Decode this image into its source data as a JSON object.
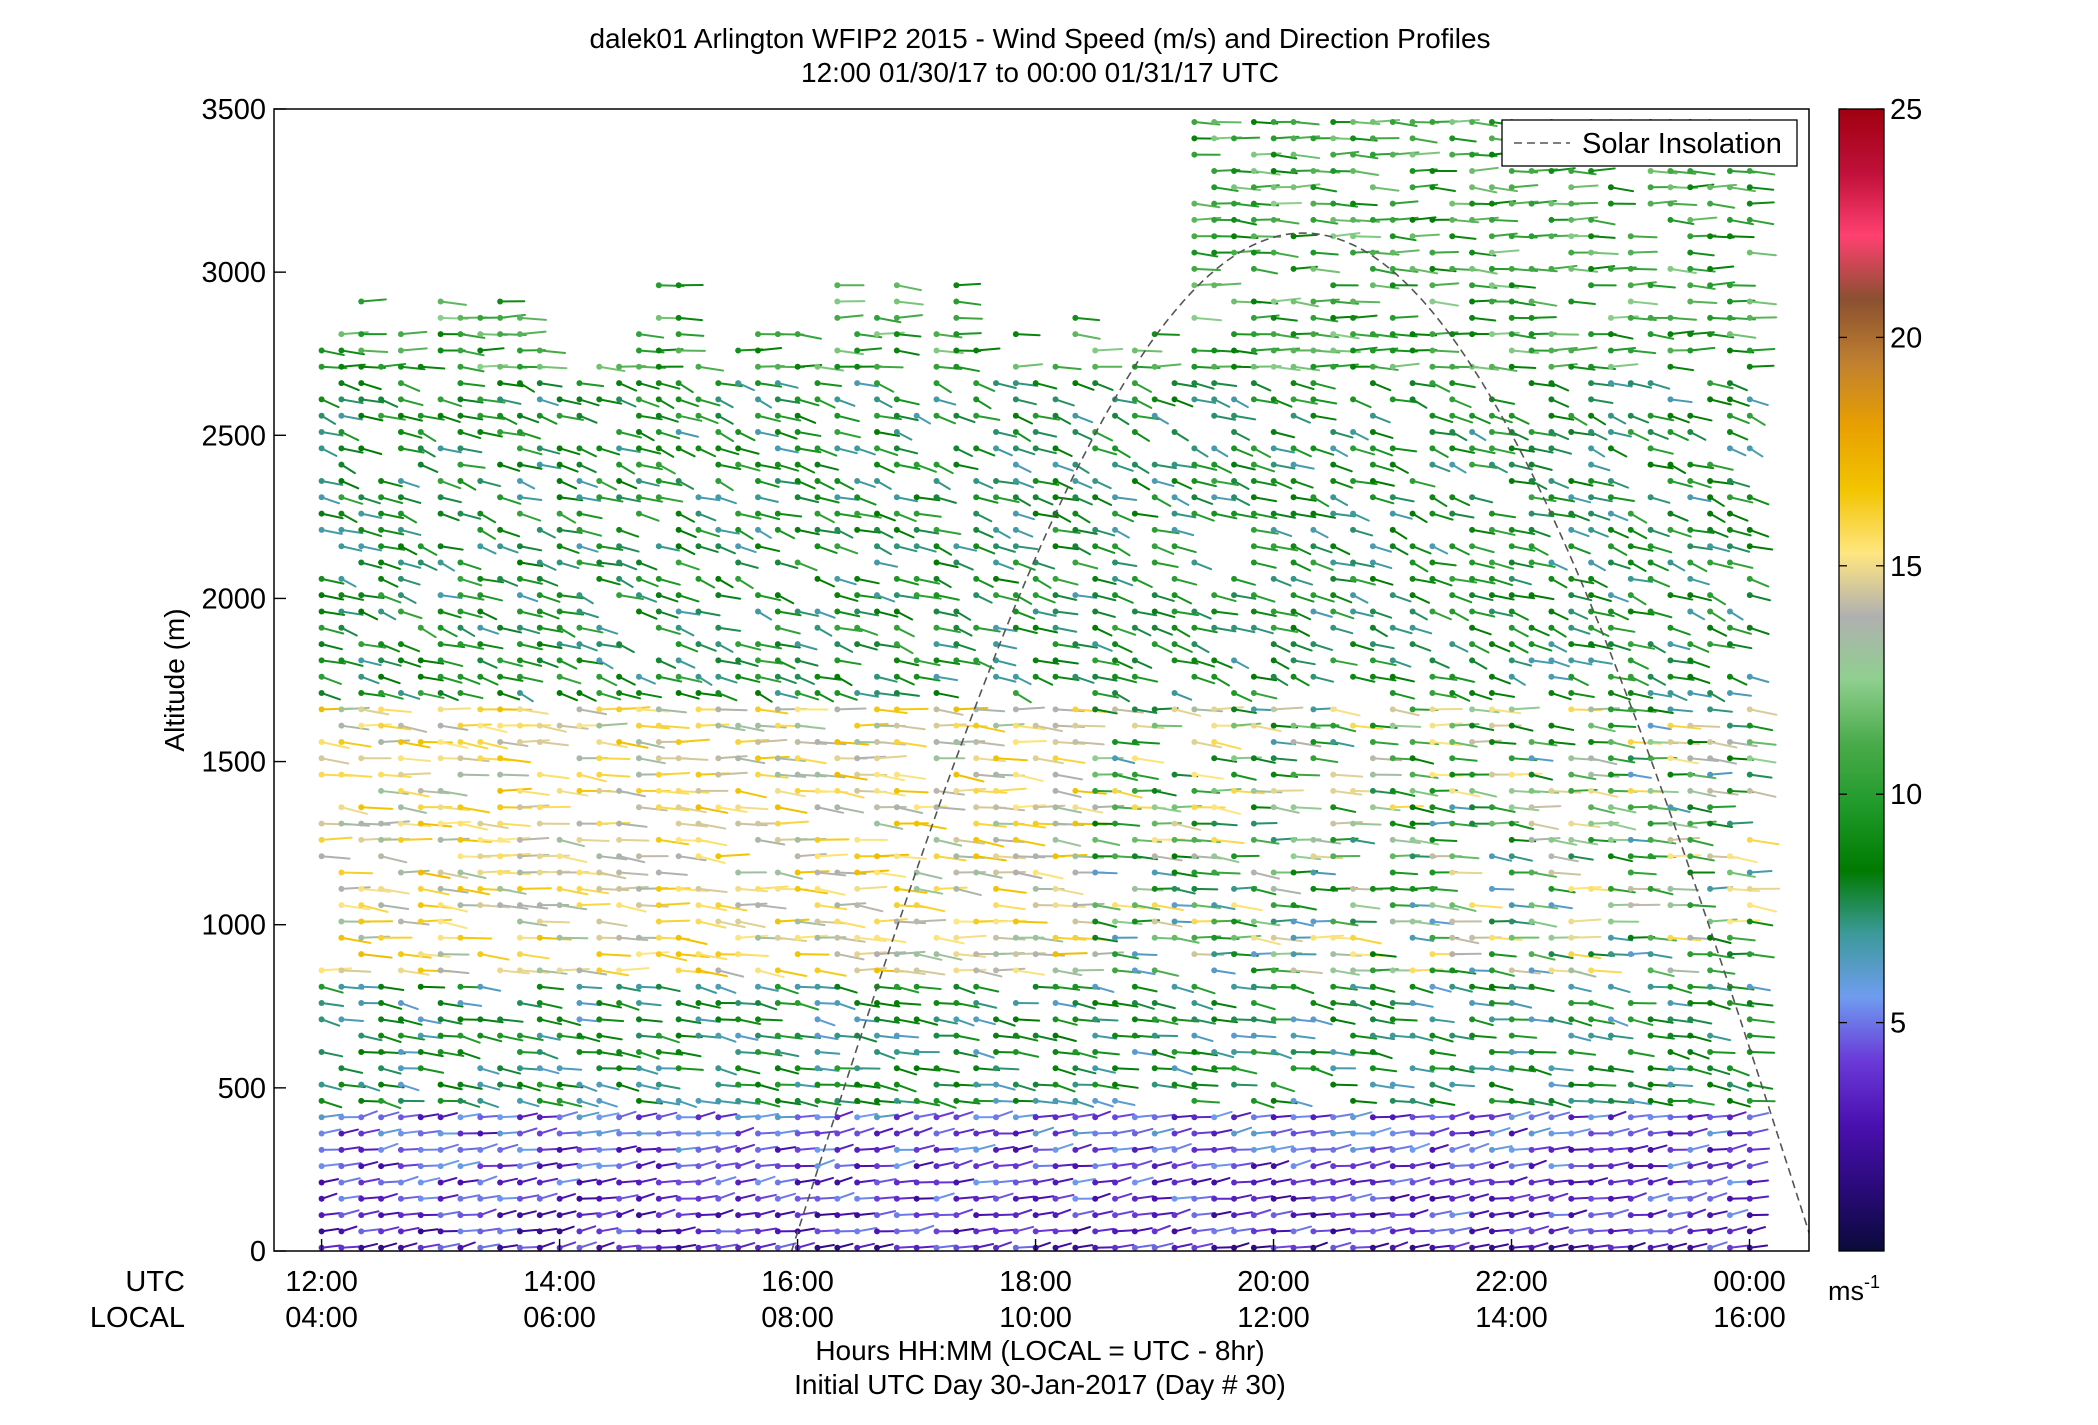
{
  "chart_data": {
    "type": "wind-barb-profile",
    "title": "dalek01 Arlington WFIP2 2015 - Wind Speed (m/s) and Direction Profiles",
    "subtitle": "12:00 01/30/17 to 00:00 01/31/17  UTC",
    "ylabel": "Altitude (m)",
    "xlabel": "Hours HH:MM  (LOCAL = UTC - 8hr)",
    "xlabel2": "Initial UTC Day 30-Jan-2017 (Day # 30)",
    "row_label_utc": "UTC",
    "row_label_local": "LOCAL",
    "x_ticks_utc": [
      "12:00",
      "14:00",
      "16:00",
      "18:00",
      "20:00",
      "22:00",
      "00:00"
    ],
    "x_ticks_local": [
      "04:00",
      "06:00",
      "08:00",
      "10:00",
      "12:00",
      "14:00",
      "16:00"
    ],
    "x_tick_hours": [
      12,
      14,
      16,
      18,
      20,
      22,
      24
    ],
    "xlim": [
      11.6,
      24.5
    ],
    "ylim": [
      0,
      3500
    ],
    "y_ticks": [
      0,
      500,
      1000,
      1500,
      2000,
      2500,
      3000,
      3500
    ],
    "y_tick_labels": [
      "0",
      "500",
      "1000",
      "1500",
      "2000",
      "2500",
      "3000",
      "3500"
    ],
    "colorbar": {
      "range": [
        0,
        25
      ],
      "ticks": [
        5,
        10,
        15,
        20,
        25
      ],
      "tick_labels": [
        "5",
        "10",
        "15",
        "20",
        "25"
      ],
      "unit_label": "ms",
      "unit_exponent": "-1",
      "colors": [
        "#0a0a3a",
        "#2a0a7a",
        "#4a10b0",
        "#6a3ad8",
        "#6f9cf0",
        "#3c9a9a",
        "#007a00",
        "#1f9a2a",
        "#4aab4a",
        "#8fcf8f",
        "#b0b0b0",
        "#ffe680",
        "#f2c400",
        "#e8a000",
        "#c08030",
        "#8a5030",
        "#ff4070",
        "#c0103a",
        "#a00010"
      ]
    },
    "legend": {
      "label": "Solar Insolation",
      "placement": "top-right"
    },
    "solar_insolation": {
      "start_hour": 15.95,
      "end_hour": 24.55,
      "peak_hour": 20.1,
      "peak_altitude": 3120
    },
    "time_start_hour": 12.0,
    "time_end_hour": 24.1,
    "time_step_hours": 0.1667,
    "direction_regimes": [
      {
        "alt_min": 0,
        "alt_max": 450,
        "speed": 3.5,
        "direction_deg": 250
      },
      {
        "alt_min": 450,
        "alt_max": 850,
        "speed": 8.0,
        "direction_deg": 290
      },
      {
        "alt_min": 850,
        "alt_max": 1700,
        "speed": 15.0,
        "direction_deg": 280
      },
      {
        "alt_min": 1700,
        "alt_max": 2700,
        "speed": 8.5,
        "direction_deg": 305
      },
      {
        "alt_min": 2700,
        "alt_max": 3500,
        "speed": 10.5,
        "direction_deg": 275
      }
    ]
  }
}
